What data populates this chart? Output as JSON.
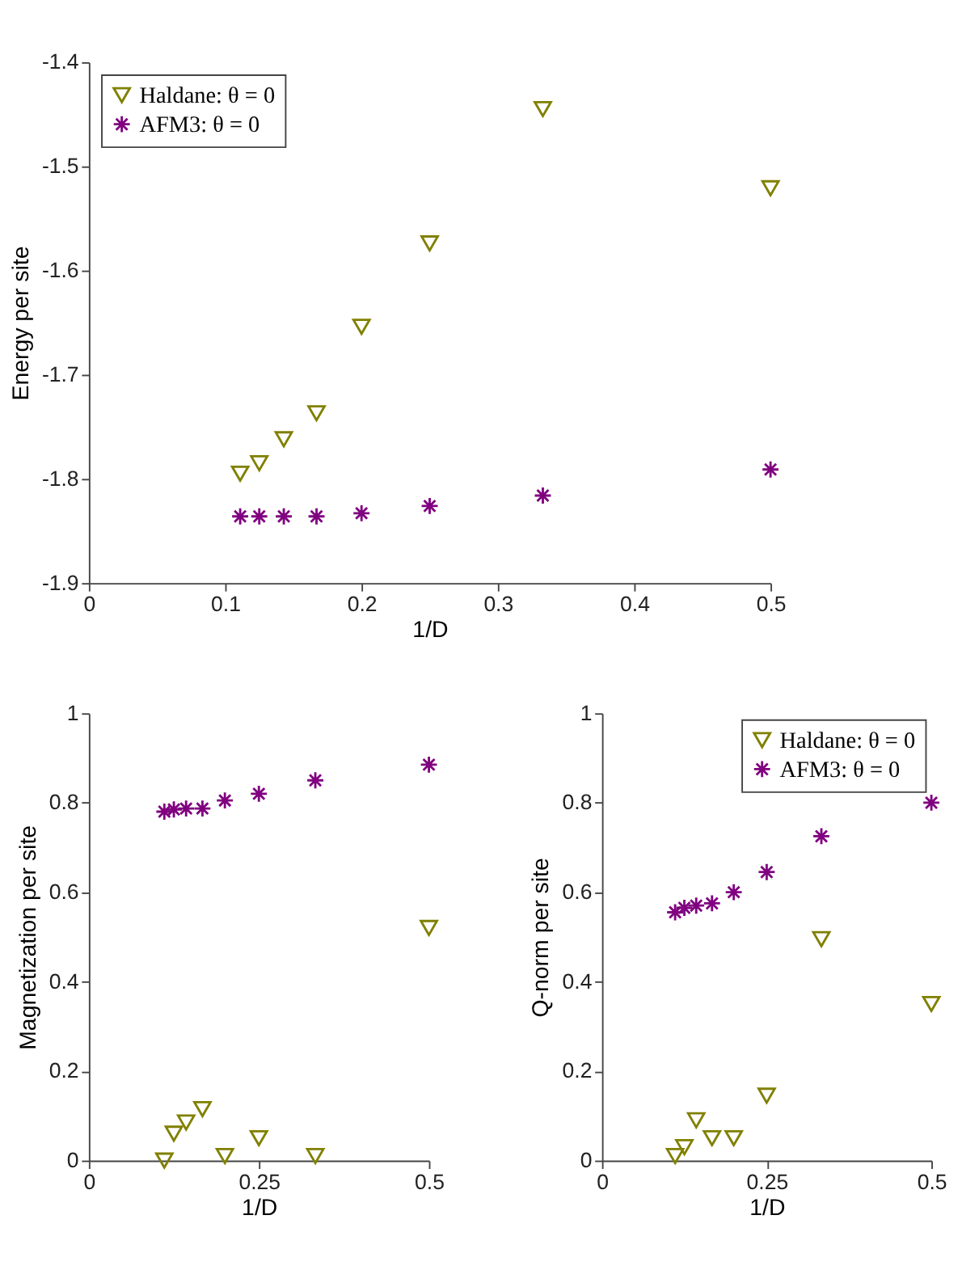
{
  "chart_data": [
    {
      "type": "scatter",
      "xlabel": "1/D",
      "ylabel": "Energy per site",
      "x": [
        0.5,
        0.333,
        0.25,
        0.2,
        0.167,
        0.143,
        0.125,
        0.111
      ],
      "xlim": [
        0,
        0.5
      ],
      "xticks": [
        0,
        0.1,
        0.2,
        0.3,
        0.4,
        0.5
      ],
      "ylim": [
        -1.9,
        -1.4
      ],
      "yticks": [
        -1.9,
        -1.8,
        -1.7,
        -1.6,
        -1.5,
        -1.4
      ],
      "grid": false,
      "legend": "top left",
      "series": [
        {
          "name": "Haldane: θ = 0",
          "color": "#808000",
          "marker": "triangle",
          "values": [
            -1.521,
            -1.445,
            -1.574,
            -1.654,
            -1.737,
            -1.762,
            -1.785,
            -1.795
          ]
        },
        {
          "name": "AFM3: θ = 0",
          "color": "#800080",
          "marker": "cross",
          "values": [
            -1.791,
            -1.816,
            -1.826,
            -1.833,
            -1.836,
            -1.836,
            -1.836,
            -1.836
          ]
        }
      ]
    },
    {
      "type": "scatter",
      "xlabel": "1/D",
      "ylabel": "Magnetization per site",
      "x": [
        0.5,
        0.333,
        0.25,
        0.2,
        0.167,
        0.143,
        0.125,
        0.111
      ],
      "xlim": [
        0,
        0.5
      ],
      "xticks": [
        0,
        0.25,
        0.5
      ],
      "ylim": [
        0,
        1
      ],
      "yticks": [
        0,
        0.2,
        0.4,
        0.6,
        0.8,
        1
      ],
      "grid": false,
      "series": [
        {
          "color": "#808000",
          "marker": "triangle",
          "values": [
            0.52,
            0.01,
            0.05,
            0.01,
            0.115,
            0.085,
            0.06,
            0.0
          ]
        },
        {
          "color": "#800080",
          "marker": "cross",
          "values": [
            0.885,
            0.85,
            0.82,
            0.805,
            0.787,
            0.787,
            0.785,
            0.78
          ]
        }
      ]
    },
    {
      "type": "scatter",
      "xlabel": "1/D",
      "ylabel": "Q-norm per site",
      "x": [
        0.5,
        0.333,
        0.25,
        0.2,
        0.167,
        0.143,
        0.125,
        0.111
      ],
      "xlim": [
        0,
        0.5
      ],
      "xticks": [
        0,
        0.25,
        0.5
      ],
      "ylim": [
        0,
        1
      ],
      "yticks": [
        0,
        0.2,
        0.4,
        0.6,
        0.8,
        1
      ],
      "grid": false,
      "legend": "top right",
      "series": [
        {
          "name": "Haldane: θ = 0",
          "color": "#808000",
          "marker": "triangle",
          "values": [
            0.35,
            0.495,
            0.145,
            0.05,
            0.05,
            0.09,
            0.03,
            0.01
          ]
        },
        {
          "name": "AFM3: θ = 0",
          "color": "#800080",
          "marker": "cross",
          "values": [
            0.8,
            0.725,
            0.645,
            0.6,
            0.575,
            0.57,
            0.565,
            0.555
          ]
        }
      ]
    }
  ]
}
